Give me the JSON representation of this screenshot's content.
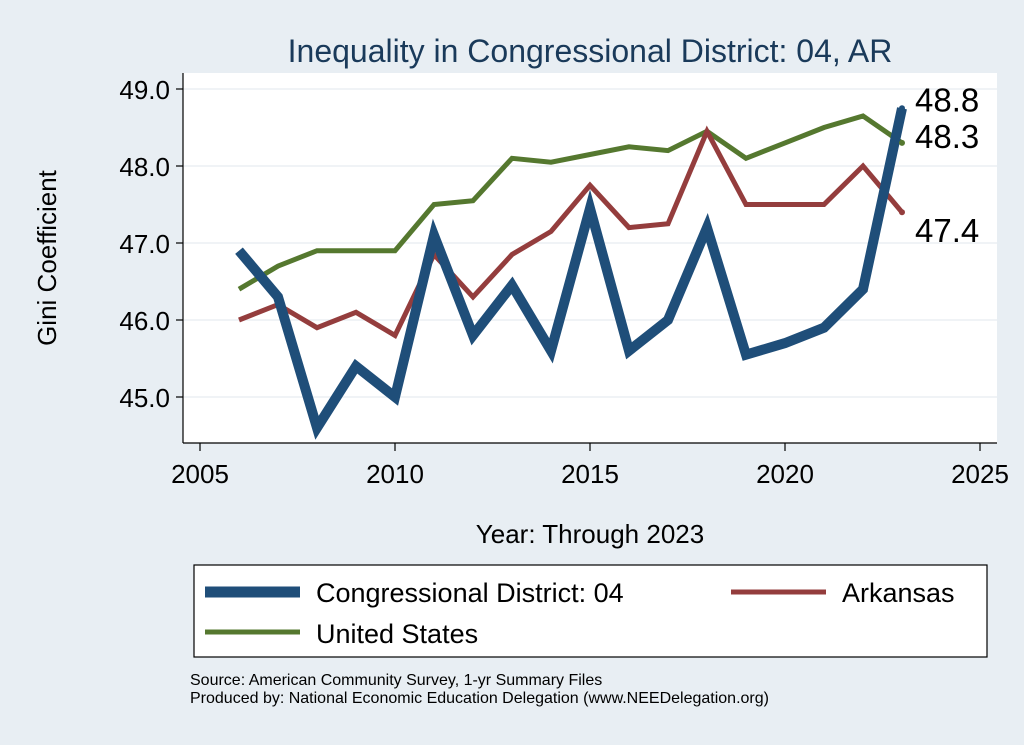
{
  "chart_data": {
    "type": "line",
    "title": "Inequality in Congressional District:  04, AR",
    "xlabel": "Year: Through 2023",
    "ylabel": "Gini Coefficient",
    "xlim": [
      2005,
      2025
    ],
    "ylim": [
      44.4,
      49.2
    ],
    "x_ticks": [
      2005,
      2010,
      2015,
      2020,
      2025
    ],
    "y_ticks": [
      45.0,
      46.0,
      47.0,
      48.0,
      49.0
    ],
    "x_tick_labels": [
      "2005",
      "2010",
      "2015",
      "2020",
      "2025"
    ],
    "y_tick_labels": [
      "45.0",
      "46.0",
      "47.0",
      "48.0",
      "49.0"
    ],
    "grid": true,
    "legend_position": "bottom",
    "series": [
      {
        "name": "Congressional District:  04",
        "color": "#1f4e79",
        "x": [
          2006,
          2007,
          2008,
          2009,
          2010,
          2011,
          2012,
          2013,
          2014,
          2015,
          2016,
          2017,
          2018,
          2019,
          2020,
          2021,
          2022,
          2023
        ],
        "values": [
          46.9,
          46.3,
          44.6,
          45.4,
          45.0,
          47.1,
          45.8,
          46.45,
          45.6,
          47.45,
          45.6,
          46.0,
          47.2,
          45.55,
          45.7,
          45.9,
          46.4,
          48.75
        ],
        "end_label": "48.8"
      },
      {
        "name": "Arkansas",
        "color": "#943d3d",
        "x": [
          2006,
          2007,
          2008,
          2009,
          2010,
          2011,
          2012,
          2013,
          2014,
          2015,
          2016,
          2017,
          2018,
          2019,
          2020,
          2021,
          2022,
          2023
        ],
        "values": [
          46.0,
          46.2,
          45.9,
          46.1,
          45.8,
          46.85,
          46.3,
          46.85,
          47.15,
          47.75,
          47.2,
          47.25,
          48.45,
          47.5,
          47.5,
          47.5,
          48.0,
          47.4
        ],
        "end_label": "47.4"
      },
      {
        "name": "United States",
        "color": "#55782f",
        "x": [
          2006,
          2007,
          2008,
          2009,
          2010,
          2011,
          2012,
          2013,
          2014,
          2015,
          2016,
          2017,
          2018,
          2019,
          2020,
          2021,
          2022,
          2023
        ],
        "values": [
          46.4,
          46.7,
          46.9,
          46.9,
          46.9,
          47.5,
          47.55,
          48.1,
          48.05,
          48.15,
          48.25,
          48.2,
          48.45,
          48.1,
          48.3,
          48.5,
          48.65,
          48.3
        ],
        "end_label": "48.3"
      }
    ],
    "legend": [
      {
        "label": "Congressional District:  04",
        "color": "#1f4e79"
      },
      {
        "label": "Arkansas",
        "color": "#943d3d"
      },
      {
        "label": "United States",
        "color": "#55782f"
      }
    ]
  },
  "footer": {
    "source": "Source: American Community Survey, 1-yr Summary Files",
    "produced": "Produced by: National Economic Education Delegation (www.NEEDelegation.org)"
  }
}
